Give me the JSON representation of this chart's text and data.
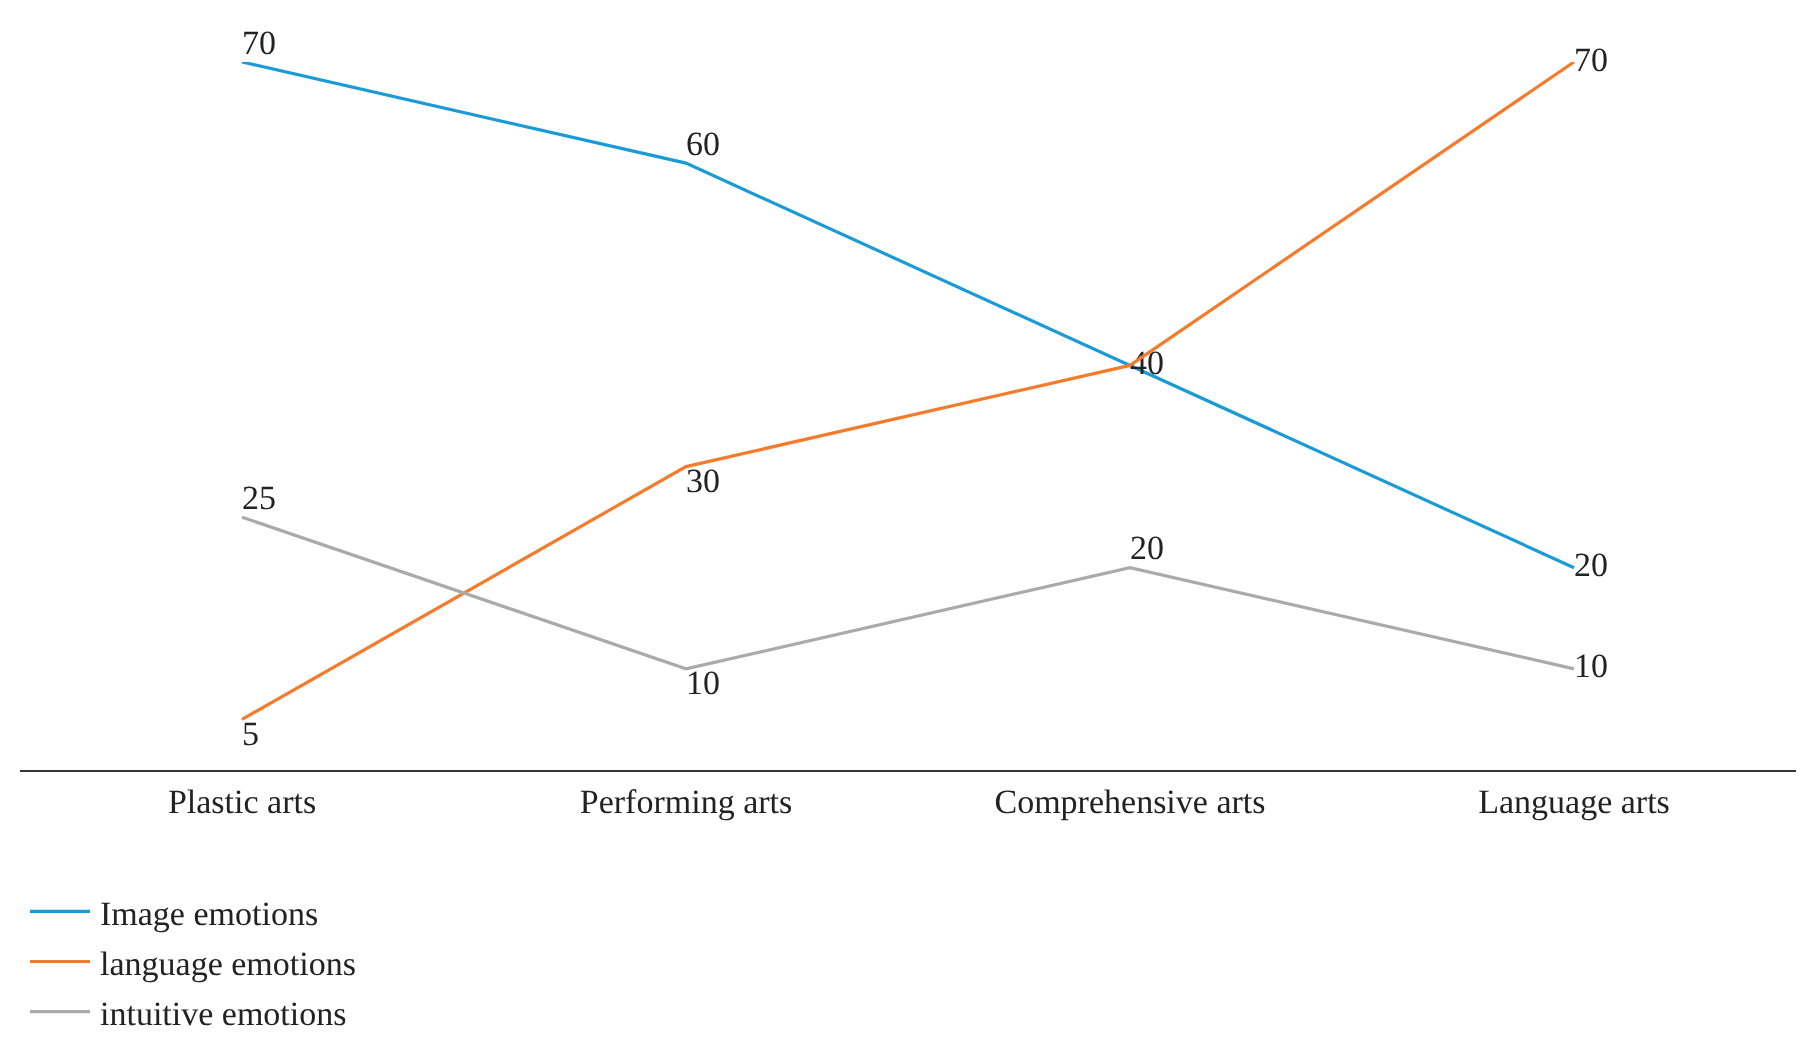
{
  "chart_data": {
    "type": "line",
    "categories": [
      "Plastic arts",
      "Performing arts",
      "Comprehensive arts",
      "Language arts"
    ],
    "series": [
      {
        "name": "Image emotions",
        "color": "#1a9ad7",
        "values": [
          70,
          60,
          40,
          20
        ],
        "value_labels": [
          "70",
          "60",
          "40",
          "20"
        ]
      },
      {
        "name": "language emotions",
        "color": "#f47b2b",
        "values": [
          5,
          30,
          40,
          70
        ],
        "value_labels": [
          "5",
          "30",
          null,
          "70"
        ]
      },
      {
        "name": "intuitive emotions",
        "color": "#aaaaaa",
        "values": [
          25,
          10,
          20,
          10
        ],
        "value_labels": [
          "25",
          "10",
          "20",
          "10"
        ]
      }
    ],
    "legend": "bottom left",
    "grid": false,
    "marker": "none",
    "line_style": "solid",
    "tick_labels": "x"
  }
}
